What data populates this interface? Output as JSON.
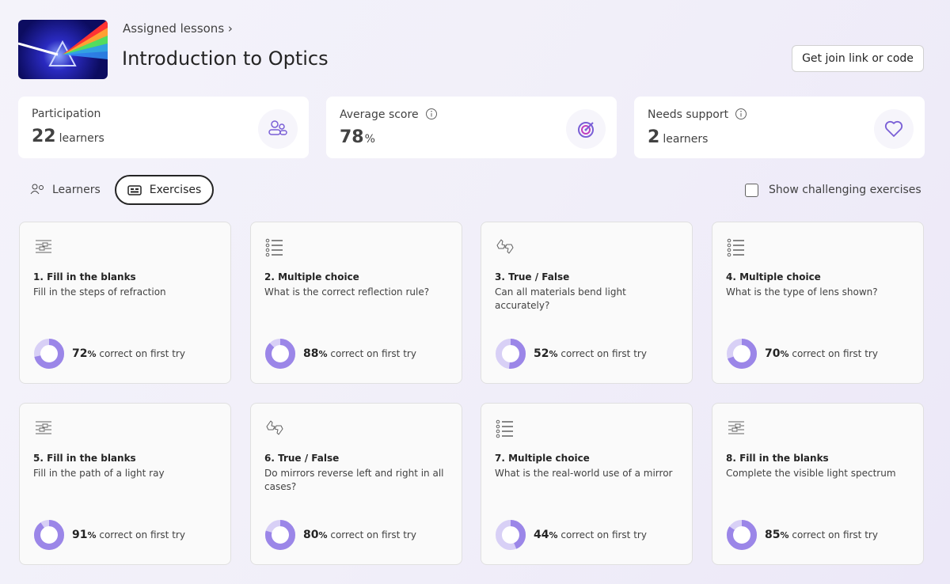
{
  "header": {
    "breadcrumb": "Assigned lessons",
    "title": "Introduction to Optics",
    "button": "Get join link or code"
  },
  "stats": [
    {
      "label": "Participation",
      "value": 22,
      "unit": "learners"
    },
    {
      "label": "Average score",
      "value": 78,
      "unit": "%"
    },
    {
      "label": "Needs support",
      "value": 2,
      "unit": "learners"
    }
  ],
  "tabs": [
    "Learners",
    "Exercises"
  ],
  "checkbox": "Show challenging exercises",
  "exercises": [
    {
      "title": "1. Fill in the blanks",
      "description": "Fill in the steps of refraction",
      "score": 72,
      "unit": "%",
      "caption": "correct on first try"
    },
    {
      "title": "2. Multiple choice",
      "description": "What is the correct reflection rule?",
      "score": 88,
      "unit": "%",
      "caption": "correct on first try"
    },
    {
      "title": "3. True / False",
      "description": "Can all materials bend light accurately?",
      "score": 52,
      "unit": "%",
      "caption": "correct on first try"
    },
    {
      "title": "4. Multiple choice",
      "description": "What is the type of lens shown?",
      "score": 70,
      "unit": "%",
      "caption": "correct on first try"
    },
    {
      "title": "5. Fill in the blanks",
      "description": "Fill in the path of a light ray",
      "score": 91,
      "unit": "%",
      "caption": "correct on first try"
    },
    {
      "title": "6. True / False",
      "description": "Do mirrors reverse left and right in all cases?",
      "score": 80,
      "unit": "%",
      "caption": "correct on first try"
    },
    {
      "title": "7. Multiple choice",
      "description": "What is the real-world use of a mirror",
      "score": 44,
      "unit": "%",
      "caption": "correct on first try"
    },
    {
      "title": "8. Fill in the blanks",
      "description": "Complete the visible light spectrum",
      "score": 85,
      "unit": "%",
      "caption": "correct on first try"
    }
  ]
}
